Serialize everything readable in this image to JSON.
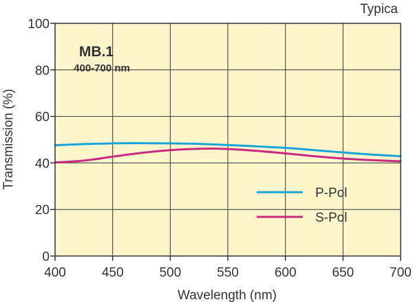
{
  "chart_data": {
    "type": "line",
    "title": "MB.1",
    "subtitle": "400-700 nm",
    "corner_note": "Typica",
    "xlabel": "Wavelength (nm)",
    "ylabel": "Transmission (%)",
    "xlim": [
      400,
      700
    ],
    "ylim": [
      0,
      100
    ],
    "xticks": [
      "400",
      "450",
      "500",
      "550",
      "600",
      "650",
      "700"
    ],
    "yticks": [
      "0",
      "20",
      "40",
      "60",
      "80",
      "100"
    ],
    "grid": true,
    "legend_position": "bottom-right",
    "plot_background": "#fdf5cc",
    "series": [
      {
        "name": "P-Pol",
        "color": "#1aa3d9",
        "x": [
          400,
          425,
          450,
          475,
          500,
          525,
          550,
          575,
          600,
          625,
          650,
          675,
          700
        ],
        "y": [
          47.6,
          48.1,
          48.4,
          48.5,
          48.4,
          48.2,
          47.7,
          47.1,
          46.5,
          45.5,
          44.5,
          43.6,
          42.9
        ]
      },
      {
        "name": "S-Pol",
        "color": "#c8287f",
        "x": [
          400,
          425,
          450,
          475,
          500,
          525,
          550,
          575,
          600,
          625,
          650,
          675,
          700
        ],
        "y": [
          40.2,
          41.0,
          42.7,
          44.3,
          45.5,
          46.1,
          46.0,
          45.2,
          44.1,
          42.9,
          41.9,
          41.2,
          40.7
        ]
      }
    ]
  }
}
